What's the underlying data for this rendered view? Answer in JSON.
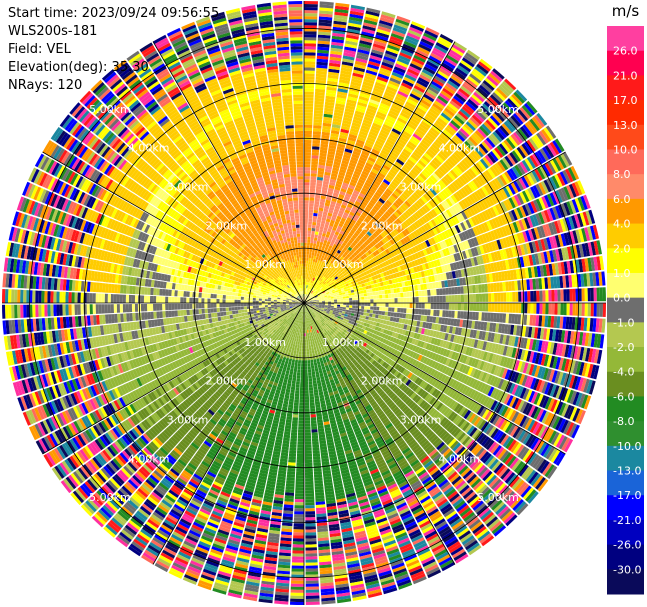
{
  "header": {
    "start_time": "Start time: 2023/09/24 09:56:55",
    "instrument": "WLS200s-181",
    "field": "Field: VEL",
    "elevation": "Elevation(deg): 35.30",
    "nrays": "NRays: 120"
  },
  "chart_data": {
    "type": "heatmap",
    "subtype": "polar PPI radial-velocity scan",
    "field": "VEL",
    "units": "m/s",
    "elevation_deg": 35.3,
    "n_rays": 120,
    "range_rings_km": [
      1.0,
      2.0,
      3.0,
      4.0,
      5.0
    ],
    "range_ring_labels": [
      "1.00km",
      "2.00km",
      "3.00km",
      "4.00km",
      "5.00km"
    ],
    "max_range_km": 5.5,
    "velocity_sector_summary": [
      {
        "region": "north, near range",
        "velocity_ms": 6.0
      },
      {
        "region": "north, mid range",
        "velocity_ms": 4.0
      },
      {
        "region": "north, outer valid range",
        "velocity_ms": 2.0
      },
      {
        "region": "east / west",
        "velocity_ms": 0.0
      },
      {
        "region": "south, near range",
        "velocity_ms": -4.0
      },
      {
        "region": "south, mid range",
        "velocity_ms": -6.0
      },
      {
        "region": "beyond valid range",
        "velocity_ms": "noise"
      }
    ],
    "colorbar": {
      "unit_label": "m/s",
      "ticks": [
        "26.0",
        "21.0",
        "17.0",
        "13.0",
        "10.0",
        "8.0",
        "6.0",
        "4.0",
        "2.0",
        "1.0",
        "0.0",
        "-1.0",
        "-2.0",
        "-4.0",
        "-6.0",
        "-8.0",
        "-10.0",
        "-13.0",
        "-17.0",
        "-21.0",
        "-26.0",
        "-30.0"
      ],
      "band_colors": [
        "#ff3fa0",
        "#ff0050",
        "#ff1a1a",
        "#ff2a00",
        "#ff4a1a",
        "#ff6a5a",
        "#ff8a6a",
        "#ff9900",
        "#ffcc00",
        "#ffff00",
        "#ffff70",
        "#6e6e6e",
        "#b4c850",
        "#94b838",
        "#6a8e20",
        "#228b22",
        "#2f8f2f",
        "#1b88a0",
        "#1a64d8",
        "#0000ff",
        "#0000c0",
        "#000080",
        "#0a0a5a"
      ]
    }
  }
}
